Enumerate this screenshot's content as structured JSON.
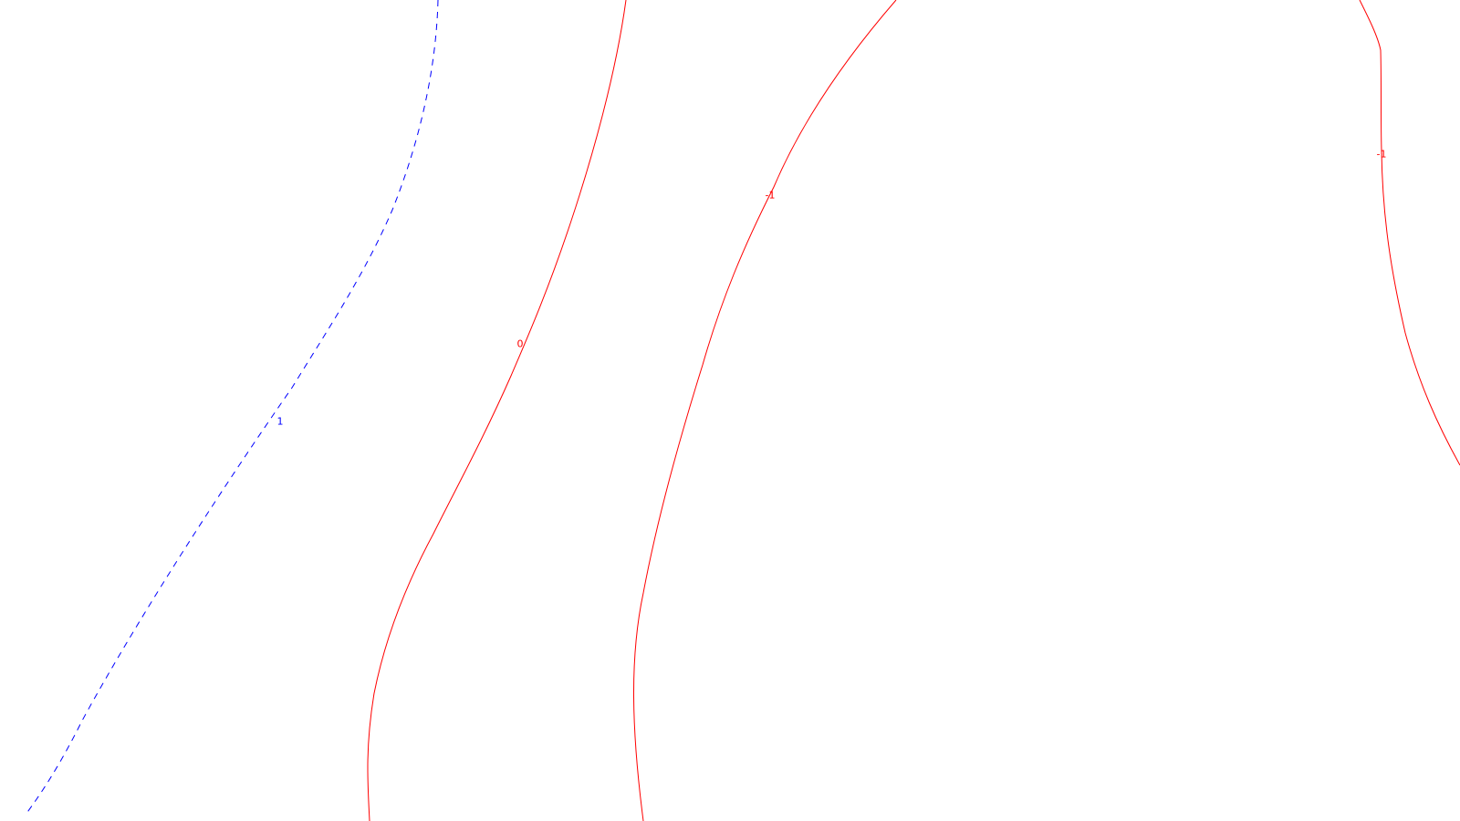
{
  "colors": {
    "background": "#ffffff",
    "positive_contour": "#0000ff",
    "zero_contour": "#ff0000",
    "negative_contour": "#ff0000"
  },
  "contours": [
    {
      "id": "contour-1",
      "label": "1",
      "style": "dashed",
      "color": "#0000ff"
    },
    {
      "id": "contour-0",
      "label": "0",
      "style": "solid",
      "color": "#ff0000"
    },
    {
      "id": "contour-minus1-a",
      "label": "-1",
      "style": "solid",
      "color": "#ff0000"
    },
    {
      "id": "contour-minus1-b",
      "label": "-1",
      "style": "solid",
      "color": "#ff0000"
    }
  ]
}
